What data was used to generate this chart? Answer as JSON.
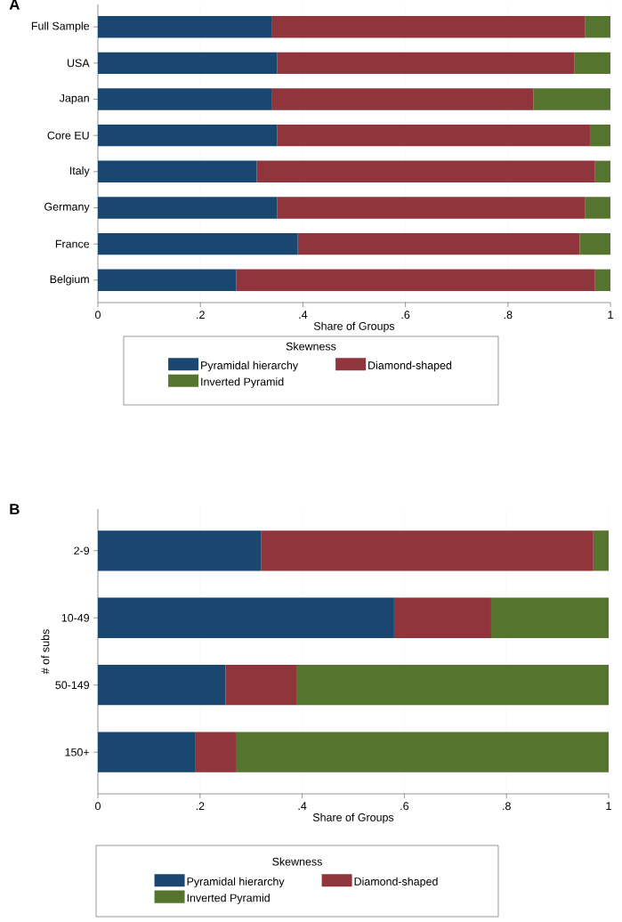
{
  "chart_data": [
    {
      "type": "bar",
      "orientation": "horizontal",
      "stacked": true,
      "title": "A",
      "xlabel": "Share of Groups",
      "legend_title": "Skewness",
      "legend": "bottom",
      "grid": "x",
      "categories": [
        "Full Sample",
        "USA",
        "Japan",
        "Core EU",
        "Italy",
        "Germany",
        "France",
        "Belgium"
      ],
      "xlim": [
        0,
        1
      ],
      "xticks": [
        0,
        {
          "value": 0.2,
          "label": ".2"
        },
        {
          "value": 0.4,
          "label": ".4"
        },
        {
          "value": 0.6,
          "label": ".6"
        },
        {
          "value": 0.8,
          "label": ".8"
        },
        1
      ],
      "series": [
        {
          "name": "Pyramidal hierarchy",
          "color": "#1a476f",
          "values": [
            0.34,
            0.35,
            0.34,
            0.35,
            0.31,
            0.35,
            0.39,
            0.27
          ]
        },
        {
          "name": "Diamond-shaped",
          "color": "#90353b",
          "values": [
            0.61,
            0.58,
            0.51,
            0.61,
            0.66,
            0.6,
            0.55,
            0.7
          ]
        },
        {
          "name": "Inverted Pyramid",
          "color": "#55752f",
          "values": [
            0.05,
            0.07,
            0.15,
            0.04,
            0.03,
            0.05,
            0.06,
            0.03
          ]
        }
      ]
    },
    {
      "type": "bar",
      "orientation": "horizontal",
      "stacked": true,
      "title": "B",
      "xlabel": "Share of Groups",
      "ylabel": "# of subs",
      "legend_title": "Skewness",
      "legend": "bottom",
      "grid": "x",
      "categories": [
        "2-9",
        "10-49",
        "50-149",
        "150+"
      ],
      "xlim": [
        0,
        1
      ],
      "xticks": [
        0,
        {
          "value": 0.2,
          "label": ".2"
        },
        {
          "value": 0.4,
          "label": ".4"
        },
        {
          "value": 0.6,
          "label": ".6"
        },
        {
          "value": 0.8,
          "label": ".8"
        },
        1
      ],
      "series": [
        {
          "name": "Pyramidal hierarchy",
          "color": "#1a476f",
          "values": [
            0.32,
            0.58,
            0.25,
            0.19
          ]
        },
        {
          "name": "Diamond-shaped",
          "color": "#90353b",
          "values": [
            0.65,
            0.19,
            0.14,
            0.08
          ]
        },
        {
          "name": "Inverted Pyramid",
          "color": "#55752f",
          "values": [
            0.03,
            0.23,
            0.61,
            0.73
          ]
        }
      ]
    }
  ]
}
